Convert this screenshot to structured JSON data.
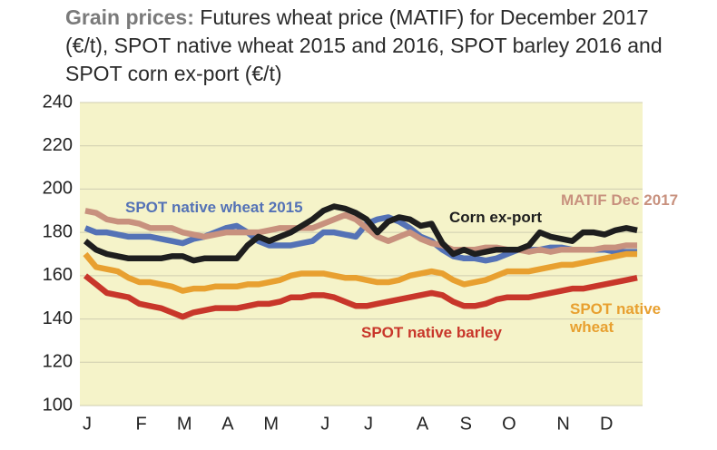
{
  "chart_data": {
    "type": "line",
    "title_lead": "Grain prices:",
    "title": "Futures wheat price (MATIF) for December 2017 (€/t), SPOT native wheat 2015 and 2016, SPOT barley 2016 and SPOT corn ex-port (€/t)",
    "categories": [
      "J",
      null,
      null,
      null,
      null,
      "F",
      null,
      null,
      null,
      "M",
      null,
      null,
      null,
      "A",
      null,
      null,
      null,
      "M",
      null,
      null,
      null,
      null,
      "J",
      null,
      null,
      null,
      "J",
      null,
      null,
      null,
      null,
      "A",
      null,
      null,
      null,
      "S",
      null,
      null,
      null,
      "O",
      null,
      null,
      null,
      null,
      "N",
      null,
      null,
      null,
      "D",
      null,
      null,
      null
    ],
    "ylim": [
      100,
      240
    ],
    "yticks": [
      100,
      120,
      140,
      160,
      180,
      200,
      220,
      240
    ],
    "grid": true,
    "series": [
      {
        "name": "SPOT native wheat 2015",
        "color": "#5472b6",
        "values": [
          182,
          180,
          180,
          179,
          178,
          178,
          178,
          177,
          176,
          175,
          177,
          178,
          180,
          182,
          183,
          180,
          176,
          174,
          174,
          174,
          175,
          176,
          180,
          180,
          179,
          178,
          184,
          186,
          187,
          185,
          182,
          178,
          176,
          172,
          169,
          168,
          168,
          167,
          168,
          170,
          172,
          172,
          172,
          173,
          173,
          172,
          172,
          172,
          172,
          171,
          171,
          171
        ]
      },
      {
        "name": "MATIF Dec 2017",
        "color": "#c8917e",
        "values": [
          190,
          189,
          186,
          185,
          185,
          184,
          182,
          182,
          182,
          180,
          179,
          178,
          179,
          180,
          180,
          180,
          180,
          181,
          182,
          182,
          182,
          182,
          184,
          186,
          188,
          186,
          182,
          178,
          176,
          178,
          180,
          177,
          175,
          174,
          172,
          172,
          172,
          173,
          173,
          172,
          172,
          171,
          172,
          171,
          172,
          172,
          172,
          172,
          173,
          173,
          174,
          174
        ]
      },
      {
        "name": "Corn ex-port",
        "color": "#1e1e1e",
        "values": [
          176,
          172,
          170,
          169,
          168,
          168,
          168,
          168,
          169,
          169,
          167,
          168,
          168,
          168,
          168,
          174,
          178,
          176,
          178,
          180,
          183,
          186,
          190,
          192,
          191,
          189,
          186,
          180,
          185,
          187,
          186,
          183,
          184,
          175,
          170,
          172,
          170,
          171,
          172,
          172,
          172,
          174,
          180,
          178,
          177,
          176,
          180,
          180,
          179,
          181,
          182,
          181
        ]
      },
      {
        "name": "SPOT native wheat",
        "color": "#e8a030",
        "values": [
          170,
          164,
          163,
          162,
          159,
          157,
          157,
          156,
          155,
          153,
          154,
          154,
          155,
          155,
          155,
          156,
          156,
          157,
          158,
          160,
          161,
          161,
          161,
          160,
          159,
          159,
          158,
          157,
          157,
          158,
          160,
          161,
          162,
          161,
          158,
          156,
          157,
          158,
          160,
          162,
          162,
          162,
          163,
          164,
          165,
          165,
          166,
          167,
          168,
          169,
          170,
          170
        ]
      },
      {
        "name": "SPOT native barley",
        "color": "#c8362a",
        "values": [
          160,
          156,
          152,
          151,
          150,
          147,
          146,
          145,
          143,
          141,
          143,
          144,
          145,
          145,
          145,
          146,
          147,
          147,
          148,
          150,
          150,
          151,
          151,
          150,
          148,
          146,
          146,
          147,
          148,
          149,
          150,
          151,
          152,
          151,
          148,
          146,
          146,
          147,
          149,
          150,
          150,
          150,
          151,
          152,
          153,
          154,
          154,
          155,
          156,
          157,
          158,
          159
        ]
      }
    ]
  }
}
